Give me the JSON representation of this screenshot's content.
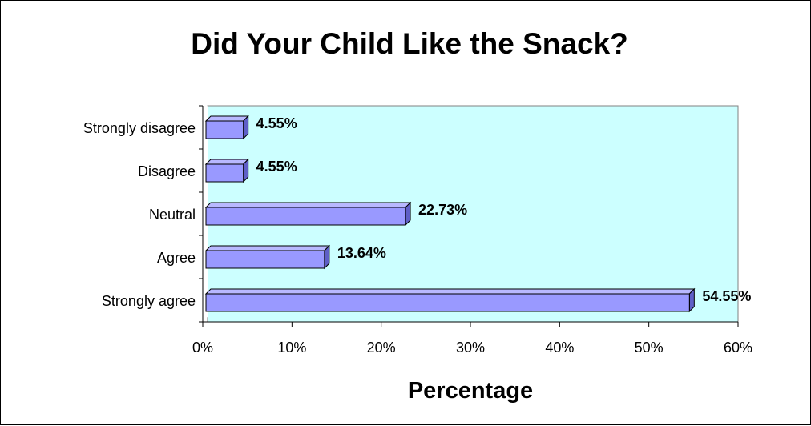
{
  "chart_data": {
    "type": "bar",
    "orientation": "horizontal",
    "title": "Did Your Child Like the Snack?",
    "xlabel": "Percentage",
    "ylabel": "",
    "categories": [
      "Strongly disagree",
      "Disagree",
      "Neutral",
      "Agree",
      "Strongly agree"
    ],
    "values": [
      4.55,
      4.55,
      22.73,
      13.64,
      54.55
    ],
    "value_labels": [
      "4.55%",
      "4.55%",
      "22.73%",
      "13.64%",
      "54.55%"
    ],
    "xlim": [
      0,
      60
    ],
    "xticks": [
      "0%",
      "10%",
      "20%",
      "30%",
      "40%",
      "50%",
      "60%"
    ],
    "grid": false,
    "legend": "none",
    "colors": {
      "plot_background": "#ccffff",
      "bar_front": "#9999ff",
      "bar_top": "#b8b8ff",
      "bar_side": "#5f5fc7",
      "outline": "#000000"
    }
  }
}
